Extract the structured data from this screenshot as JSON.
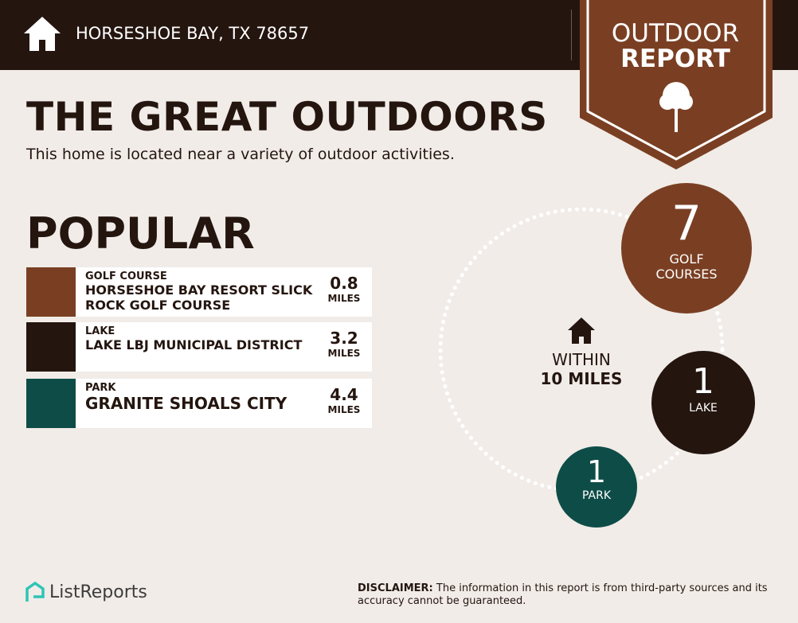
{
  "header": {
    "location": "HORSESHOE BAY, TX 78657"
  },
  "badge": {
    "line1": "OUTDOOR",
    "line2": "REPORT"
  },
  "title": "THE GREAT OUTDOORS",
  "subtitle": "This home is located near a variety of outdoor activities.",
  "popular": {
    "heading": "POPULAR",
    "items": [
      {
        "category": "GOLF COURSE",
        "name": "HORSESHOE BAY RESORT SLICK ROCK GOLF COURSE",
        "distance": "0.8",
        "unit": "MILES"
      },
      {
        "category": "LAKE",
        "name": "LAKE LBJ MUNICIPAL DISTRICT",
        "distance": "3.2",
        "unit": "MILES"
      },
      {
        "category": "PARK",
        "name": "GRANITE SHOALS CITY",
        "distance": "4.4",
        "unit": "MILES"
      }
    ]
  },
  "summary": {
    "within": "WITHIN",
    "radius": "10 MILES",
    "counts": [
      {
        "count": "7",
        "label": "GOLF COURSES"
      },
      {
        "count": "1",
        "label": "LAKE"
      },
      {
        "count": "1",
        "label": "PARK"
      }
    ]
  },
  "footer": {
    "brand": "ListReports",
    "disclaimer_label": "DISCLAIMER:",
    "disclaimer": "The information in this report is from third-party sources and its accuracy cannot be guaranteed."
  }
}
